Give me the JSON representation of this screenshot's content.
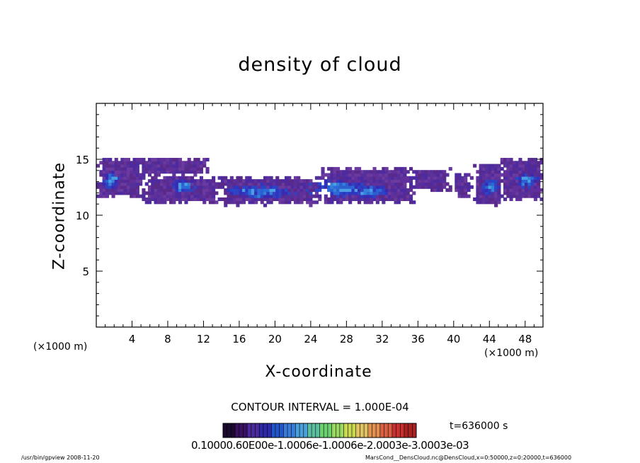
{
  "chart_data": {
    "type": "heatmap",
    "title": "density of cloud",
    "xlabel": "X-coordinate",
    "ylabel": "Z-coordinate",
    "x_unit_left": "(×1000 m)",
    "x_unit_right": "(×1000 m)",
    "xlim": [
      0,
      50
    ],
    "ylim": [
      0,
      20
    ],
    "x_ticks": [
      4,
      8,
      12,
      16,
      20,
      24,
      28,
      32,
      36,
      40,
      44,
      48
    ],
    "y_ticks": [
      5,
      10,
      15
    ],
    "contour_interval": "CONTOUR INTERVAL = 1.000E-04",
    "time_label": "t=636000 s",
    "colorbar_labels": "0.10000.60E00e-1.0006e-1.0006e-2.0003e-3.0003e-03",
    "colorbar_colors": [
      "#1a0a30",
      "#3a1060",
      "#4a2a9a",
      "#2a2aa8",
      "#2255c8",
      "#3a7ad8",
      "#4aa0d8",
      "#5cc0a0",
      "#6ad070",
      "#9ad860",
      "#c8d850",
      "#e0c060",
      "#e09050",
      "#d86040",
      "#c83030",
      "#a82020"
    ],
    "cloud_regions": [
      {
        "x0": 0.0,
        "x1": 5.0,
        "z0": 11.5,
        "z1": 15.0
      },
      {
        "x0": 3.0,
        "x1": 12.5,
        "z0": 13.5,
        "z1": 15.0
      },
      {
        "x0": 5.0,
        "x1": 14.0,
        "z0": 11.0,
        "z1": 13.3
      },
      {
        "x0": 13.5,
        "x1": 25.0,
        "z0": 10.8,
        "z1": 13.3
      },
      {
        "x0": 25.0,
        "x1": 35.5,
        "z0": 11.0,
        "z1": 14.2
      },
      {
        "x0": 33.0,
        "x1": 39.5,
        "z0": 12.0,
        "z1": 14.0
      },
      {
        "x0": 40.0,
        "x1": 41.8,
        "z0": 11.4,
        "z1": 13.6
      },
      {
        "x0": 42.2,
        "x1": 45.5,
        "z0": 10.8,
        "z1": 14.5
      },
      {
        "x0": 45.0,
        "x1": 50.0,
        "z0": 11.3,
        "z1": 15.0
      }
    ],
    "dense_cores": [
      {
        "x": 18.0,
        "z": 12.0,
        "rx": 4.5,
        "rz": 0.7
      },
      {
        "x": 27.0,
        "z": 12.3,
        "rx": 4.0,
        "rz": 0.9
      },
      {
        "x": 30.5,
        "z": 12.0,
        "rx": 2.5,
        "rz": 0.7
      },
      {
        "x": 9.5,
        "z": 12.5,
        "rx": 1.5,
        "rz": 0.8
      },
      {
        "x": 44.0,
        "z": 12.5,
        "rx": 1.2,
        "rz": 0.9
      },
      {
        "x": 48.0,
        "z": 13.0,
        "rx": 1.5,
        "rz": 0.8
      },
      {
        "x": 1.5,
        "z": 13.0,
        "rx": 1.2,
        "rz": 0.9
      }
    ]
  },
  "footer": {
    "program": "/usr/bin/gpview   2008-11-20",
    "source": "MarsCond__DensCloud.nc@DensCloud,x=0:50000,z=0:20000,t=636000"
  }
}
